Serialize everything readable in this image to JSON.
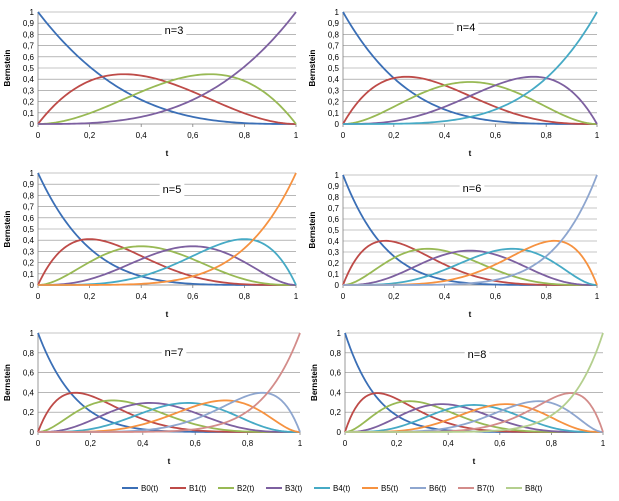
{
  "chart_data": {
    "type": "line",
    "title": "",
    "xlabel": "t",
    "ylabel": "Bernstein",
    "xlim": [
      0,
      1
    ],
    "ylim": [
      0,
      1
    ],
    "x_ticks": [
      "0",
      "0,2",
      "0,4",
      "0,6",
      "0,8",
      "1"
    ],
    "y_ticks": [
      "0",
      "0,1",
      "0,2",
      "0,3",
      "0,4",
      "0,5",
      "0,6",
      "0,7",
      "0,8",
      "0,9",
      "1"
    ],
    "y_ticks_bottom_row": [
      "0",
      "0,2",
      "0,4",
      "0,6",
      "0,8",
      "1"
    ],
    "grid": "horizontal",
    "legend_position": "bottom",
    "series_style": [
      {
        "name": "B0(t)",
        "color": "#3B6FB6"
      },
      {
        "name": "B1(t)",
        "color": "#BE4B48"
      },
      {
        "name": "B2(t)",
        "color": "#98B954"
      },
      {
        "name": "B3(t)",
        "color": "#7D60A0"
      },
      {
        "name": "B4(t)",
        "color": "#46AAC5"
      },
      {
        "name": "B5(t)",
        "color": "#F69240"
      },
      {
        "name": "B6(t)",
        "color": "#8EA6CF"
      },
      {
        "name": "B7(t)",
        "color": "#D38C8A"
      },
      {
        "name": "B8(t)",
        "color": "#B4CF8E"
      }
    ],
    "panels": [
      {
        "label": "n=3",
        "n": 3,
        "x": [
          0,
          0.2,
          0.4,
          0.6,
          0.8,
          1
        ],
        "series": [
          {
            "name": "B0(t)",
            "values": [
              1,
              0.512,
              0.216,
              0.064,
              0.008,
              0
            ]
          },
          {
            "name": "B1(t)",
            "values": [
              0,
              0.384,
              0.432,
              0.288,
              0.096,
              0
            ]
          },
          {
            "name": "B2(t)",
            "values": [
              0,
              0.096,
              0.288,
              0.432,
              0.384,
              0
            ]
          },
          {
            "name": "B3(t)",
            "values": [
              0,
              0.008,
              0.064,
              0.216,
              0.512,
              1
            ]
          }
        ]
      },
      {
        "label": "n=4",
        "n": 4,
        "x": [
          0,
          0.2,
          0.4,
          0.6,
          0.8,
          1
        ],
        "series": [
          {
            "name": "B0(t)",
            "values": [
              1,
              0.41,
              0.13,
              0.026,
              0.002,
              0
            ]
          },
          {
            "name": "B1(t)",
            "values": [
              0,
              0.41,
              0.346,
              0.154,
              0.026,
              0
            ]
          },
          {
            "name": "B2(t)",
            "values": [
              0,
              0.154,
              0.346,
              0.346,
              0.154,
              0
            ]
          },
          {
            "name": "B3(t)",
            "values": [
              0,
              0.026,
              0.154,
              0.346,
              0.41,
              0
            ]
          },
          {
            "name": "B4(t)",
            "values": [
              0,
              0.002,
              0.026,
              0.13,
              0.41,
              1
            ]
          }
        ]
      },
      {
        "label": "n=5",
        "n": 5,
        "x": [
          0,
          0.2,
          0.4,
          0.6,
          0.8,
          1
        ],
        "series": [
          {
            "name": "B0(t)",
            "values": [
              1,
              0.328,
              0.078,
              0.01,
              0,
              0
            ]
          },
          {
            "name": "B1(t)",
            "values": [
              0,
              0.41,
              0.259,
              0.077,
              0.006,
              0
            ]
          },
          {
            "name": "B2(t)",
            "values": [
              0,
              0.205,
              0.346,
              0.23,
              0.051,
              0
            ]
          },
          {
            "name": "B3(t)",
            "values": [
              0,
              0.051,
              0.23,
              0.346,
              0.205,
              0
            ]
          },
          {
            "name": "B4(t)",
            "values": [
              0,
              0.006,
              0.077,
              0.259,
              0.41,
              0
            ]
          },
          {
            "name": "B5(t)",
            "values": [
              0,
              0,
              0.01,
              0.078,
              0.328,
              1
            ]
          }
        ]
      },
      {
        "label": "n=6",
        "n": 6,
        "x": [
          0,
          0.2,
          0.4,
          0.6,
          0.8,
          1
        ],
        "series": [
          {
            "name": "B0(t)",
            "values": [
              1,
              0.262,
              0.047,
              0.004,
              0,
              0
            ]
          },
          {
            "name": "B1(t)",
            "values": [
              0,
              0.393,
              0.187,
              0.037,
              0.002,
              0
            ]
          },
          {
            "name": "B2(t)",
            "values": [
              0,
              0.246,
              0.311,
              0.138,
              0.015,
              0
            ]
          },
          {
            "name": "B3(t)",
            "values": [
              0,
              0.082,
              0.276,
              0.276,
              0.082,
              0
            ]
          },
          {
            "name": "B4(t)",
            "values": [
              0,
              0.015,
              0.138,
              0.311,
              0.246,
              0
            ]
          },
          {
            "name": "B5(t)",
            "values": [
              0,
              0.002,
              0.037,
              0.187,
              0.393,
              0
            ]
          },
          {
            "name": "B6(t)",
            "values": [
              0,
              0,
              0.004,
              0.047,
              0.262,
              1
            ]
          }
        ]
      },
      {
        "label": "n=7",
        "n": 7,
        "x": [
          0,
          0.2,
          0.4,
          0.6,
          0.8,
          1
        ],
        "series": [
          {
            "name": "B0(t)",
            "values": [
              1,
              0.21,
              0.028,
              0.002,
              0,
              0
            ]
          },
          {
            "name": "B1(t)",
            "values": [
              0,
              0.367,
              0.131,
              0.017,
              0,
              0
            ]
          },
          {
            "name": "B2(t)",
            "values": [
              0,
              0.275,
              0.261,
              0.077,
              0.004,
              0
            ]
          },
          {
            "name": "B3(t)",
            "values": [
              0,
              0.115,
              0.29,
              0.194,
              0.029,
              0
            ]
          },
          {
            "name": "B4(t)",
            "values": [
              0,
              0.029,
              0.194,
              0.29,
              0.115,
              0
            ]
          },
          {
            "name": "B5(t)",
            "values": [
              0,
              0.004,
              0.077,
              0.261,
              0.275,
              0
            ]
          },
          {
            "name": "B6(t)",
            "values": [
              0,
              0,
              0.017,
              0.131,
              0.367,
              0
            ]
          },
          {
            "name": "B7(t)",
            "values": [
              0,
              0,
              0.002,
              0.028,
              0.21,
              1
            ]
          }
        ]
      },
      {
        "label": "n=8",
        "n": 8,
        "x": [
          0,
          0.2,
          0.4,
          0.6,
          0.8,
          1
        ],
        "series": [
          {
            "name": "B0(t)",
            "values": [
              1,
              0.168,
              0.017,
              0.001,
              0,
              0
            ]
          },
          {
            "name": "B1(t)",
            "values": [
              0,
              0.336,
              0.09,
              0.008,
              0,
              0
            ]
          },
          {
            "name": "B2(t)",
            "values": [
              0,
              0.294,
              0.209,
              0.041,
              0.001,
              0
            ]
          },
          {
            "name": "B3(t)",
            "values": [
              0,
              0.147,
              0.279,
              0.124,
              0.009,
              0
            ]
          },
          {
            "name": "B4(t)",
            "values": [
              0,
              0.046,
              0.232,
              0.232,
              0.046,
              0
            ]
          },
          {
            "name": "B5(t)",
            "values": [
              0,
              0.009,
              0.124,
              0.279,
              0.147,
              0
            ]
          },
          {
            "name": "B6(t)",
            "values": [
              0,
              0.001,
              0.041,
              0.209,
              0.294,
              0
            ]
          },
          {
            "name": "B7(t)",
            "values": [
              0,
              0,
              0.008,
              0.09,
              0.336,
              0
            ]
          },
          {
            "name": "B8(t)",
            "values": [
              0,
              0,
              0.001,
              0.017,
              0.168,
              1
            ]
          }
        ]
      }
    ]
  }
}
